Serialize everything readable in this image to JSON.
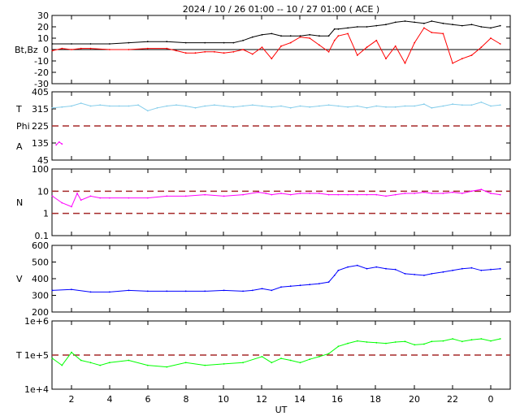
{
  "chart_data": {
    "type": "line",
    "title": "2024 / 10 / 26   01:00 -- 10 / 27   01:00 ( ACE )",
    "xlabel": "UT",
    "x_ticks": [
      "2",
      "4",
      "6",
      "8",
      "10",
      "12",
      "14",
      "16",
      "18",
      "20",
      "22",
      "0"
    ],
    "x_range_hours": [
      1,
      25
    ],
    "panels": [
      {
        "id": "magnetic",
        "ylabel": "Bt,Bz",
        "ylim": [
          -30,
          30
        ],
        "yticks": [
          "30",
          "20",
          "10",
          "0",
          "-10",
          "-20",
          "-30"
        ],
        "ytick_values": [
          30,
          20,
          10,
          0,
          -10,
          -20,
          -30
        ],
        "reference_lines": [
          0
        ],
        "series": [
          {
            "name": "Bt",
            "color": "#000000",
            "x": [
              1,
              2,
              3,
              4,
              5,
              6,
              7,
              8,
              9,
              10,
              10.5,
              11,
              11.5,
              12,
              12.5,
              13,
              13.5,
              14,
              14.5,
              15,
              15.5,
              15.8,
              16,
              16.5,
              17,
              17.5,
              18,
              18.5,
              19,
              19.5,
              20,
              20.5,
              20.9,
              21.5,
              22,
              22.5,
              23,
              23.5,
              24,
              24.5
            ],
            "y": [
              5,
              5,
              5,
              5,
              6,
              7,
              7,
              6,
              6,
              6,
              6,
              8,
              11,
              13,
              14,
              12,
              12,
              12,
              13,
              12,
              12,
              18,
              18,
              19,
              20,
              20,
              21,
              22,
              24,
              25,
              24,
              23,
              25,
              23,
              22,
              21,
              22,
              20,
              19,
              21
            ]
          },
          {
            "name": "Bz",
            "color": "#ff0000",
            "x": [
              1,
              1.5,
              2,
              2.5,
              3,
              4,
              5,
              6,
              7,
              7.5,
              8,
              8.5,
              9,
              9.5,
              10,
              10.5,
              11,
              11.5,
              12,
              12.5,
              13,
              13.5,
              14,
              14.5,
              15,
              15.5,
              15.8,
              16,
              16.5,
              17,
              17.5,
              18,
              18.5,
              19,
              19.5,
              20,
              20.5,
              20.9,
              21.5,
              22,
              22.5,
              23,
              23.5,
              24,
              24.5
            ],
            "y": [
              -1,
              1,
              0,
              1,
              1,
              0,
              0,
              1,
              1,
              -1,
              -3,
              -3,
              -2,
              -2,
              -3,
              -2,
              0,
              -4,
              2,
              -8,
              3,
              6,
              11,
              10,
              4,
              -2,
              8,
              12,
              14,
              -5,
              2,
              8,
              -8,
              3,
              -12,
              6,
              19,
              15,
              14,
              -12,
              -8,
              -5,
              2,
              10,
              5
            ]
          }
        ]
      },
      {
        "id": "temperature-phi",
        "ylabel_lines": [
          "T",
          "Phi",
          "A"
        ],
        "ylim": [
          45,
          405
        ],
        "yticks": [
          "405",
          "315",
          "225",
          "135",
          "45"
        ],
        "ytick_values": [
          405,
          315,
          225,
          135,
          45
        ],
        "reference_lines": [
          225
        ],
        "series": [
          {
            "name": "Phi",
            "color": "#87ceeb",
            "x": [
              1,
              1.5,
              2,
              2.5,
              3,
              3.5,
              4,
              4.5,
              5,
              5.5,
              6,
              6.5,
              7,
              7.5,
              8,
              8.5,
              9,
              9.5,
              10,
              10.5,
              11,
              11.5,
              12,
              12.5,
              13,
              13.5,
              14,
              14.5,
              15,
              15.5,
              16,
              16.5,
              17,
              17.5,
              18,
              18.5,
              19,
              19.5,
              20,
              20.5,
              20.9,
              21.5,
              22,
              22.5,
              23,
              23.5,
              24,
              24.5
            ],
            "y": [
              320,
              325,
              330,
              345,
              330,
              335,
              330,
              330,
              330,
              335,
              305,
              320,
              330,
              335,
              330,
              320,
              330,
              335,
              330,
              325,
              330,
              335,
              330,
              325,
              330,
              320,
              330,
              325,
              330,
              335,
              330,
              325,
              330,
              320,
              330,
              325,
              325,
              330,
              330,
              340,
              320,
              330,
              340,
              335,
              335,
              350,
              330,
              335
            ]
          },
          {
            "name": "A",
            "color": "#ff00ff",
            "x": [
              1.2,
              1.35,
              1.5
            ],
            "y": [
              125,
              140,
              130
            ]
          }
        ]
      },
      {
        "id": "density",
        "ylabel": "N",
        "scale": "log",
        "ylim": [
          0.1,
          100
        ],
        "yticks": [
          "100",
          "10",
          "1",
          "0.1"
        ],
        "ytick_values": [
          100,
          10,
          1,
          0.1
        ],
        "reference_lines": [
          10,
          1
        ],
        "series": [
          {
            "name": "N",
            "color": "#ff00ff",
            "x": [
              1,
              1.5,
              2,
              2.3,
              2.5,
              3,
              3.5,
              4,
              5,
              6,
              7,
              8,
              9,
              10,
              11,
              11.8,
              12.2,
              12.5,
              13,
              13.5,
              14,
              14.5,
              15,
              15.5,
              16,
              16.5,
              17,
              17.5,
              18,
              18.5,
              19,
              19.5,
              20,
              20.5,
              20.9,
              21.5,
              22,
              22.5,
              23,
              23.5,
              24,
              24.5
            ],
            "y": [
              6,
              3,
              2,
              8,
              4,
              6,
              5,
              5,
              5,
              5,
              6,
              6,
              7,
              6,
              7,
              9,
              8,
              7,
              8,
              7,
              8,
              8,
              8,
              7,
              7,
              7,
              7,
              7,
              7,
              6,
              7,
              8,
              8,
              9,
              8,
              8,
              9,
              8,
              10,
              12,
              8,
              7
            ]
          }
        ]
      },
      {
        "id": "velocity",
        "ylabel": "V",
        "ylim": [
          200,
          600
        ],
        "yticks": [
          "600",
          "500",
          "400",
          "300",
          "200"
        ],
        "ytick_values": [
          600,
          500,
          400,
          300,
          200
        ],
        "series": [
          {
            "name": "V",
            "color": "#0000ff",
            "x": [
              1,
              2,
              3,
              4,
              5,
              6,
              7,
              8,
              9,
              10,
              11,
              11.5,
              12,
              12.5,
              13,
              13.5,
              14,
              14.5,
              15,
              15.5,
              15.8,
              16,
              16.5,
              17,
              17.5,
              18,
              18.5,
              19,
              19.5,
              20,
              20.5,
              20.9,
              21.5,
              22,
              22.5,
              23,
              23.5,
              24,
              24.5
            ],
            "y": [
              330,
              335,
              320,
              320,
              330,
              325,
              325,
              325,
              325,
              330,
              325,
              330,
              340,
              330,
              350,
              355,
              360,
              365,
              370,
              380,
              420,
              450,
              470,
              480,
              460,
              470,
              460,
              455,
              430,
              425,
              420,
              430,
              440,
              450,
              460,
              465,
              450,
              455,
              460
            ]
          }
        ]
      },
      {
        "id": "proton-temperature",
        "ylabel": "T",
        "scale": "log",
        "ylim": [
          10000,
          1000000
        ],
        "yticks": [
          "1e+6",
          "1e+5",
          "1e+4"
        ],
        "ytick_values": [
          1000000,
          100000,
          10000
        ],
        "reference_lines": [
          100000
        ],
        "series": [
          {
            "name": "T",
            "color": "#00ff00",
            "x": [
              1,
              1.5,
              2,
              2.5,
              3,
              3.5,
              4,
              5,
              6,
              7,
              8,
              9,
              10,
              11,
              12,
              12.5,
              13,
              13.5,
              14,
              14.5,
              15,
              15.5,
              16,
              16.5,
              17,
              17.5,
              18,
              18.5,
              19,
              19.5,
              20,
              20.5,
              20.9,
              21.5,
              22,
              22.5,
              23,
              23.5,
              24,
              24.5
            ],
            "y": [
              80000,
              50000,
              120000,
              70000,
              60000,
              50000,
              60000,
              70000,
              50000,
              45000,
              60000,
              50000,
              55000,
              60000,
              90000,
              60000,
              80000,
              70000,
              60000,
              75000,
              90000,
              110000,
              180000,
              220000,
              260000,
              240000,
              230000,
              220000,
              240000,
              250000,
              200000,
              210000,
              250000,
              260000,
              300000,
              250000,
              280000,
              300000,
              260000,
              300000
            ]
          }
        ]
      }
    ]
  }
}
